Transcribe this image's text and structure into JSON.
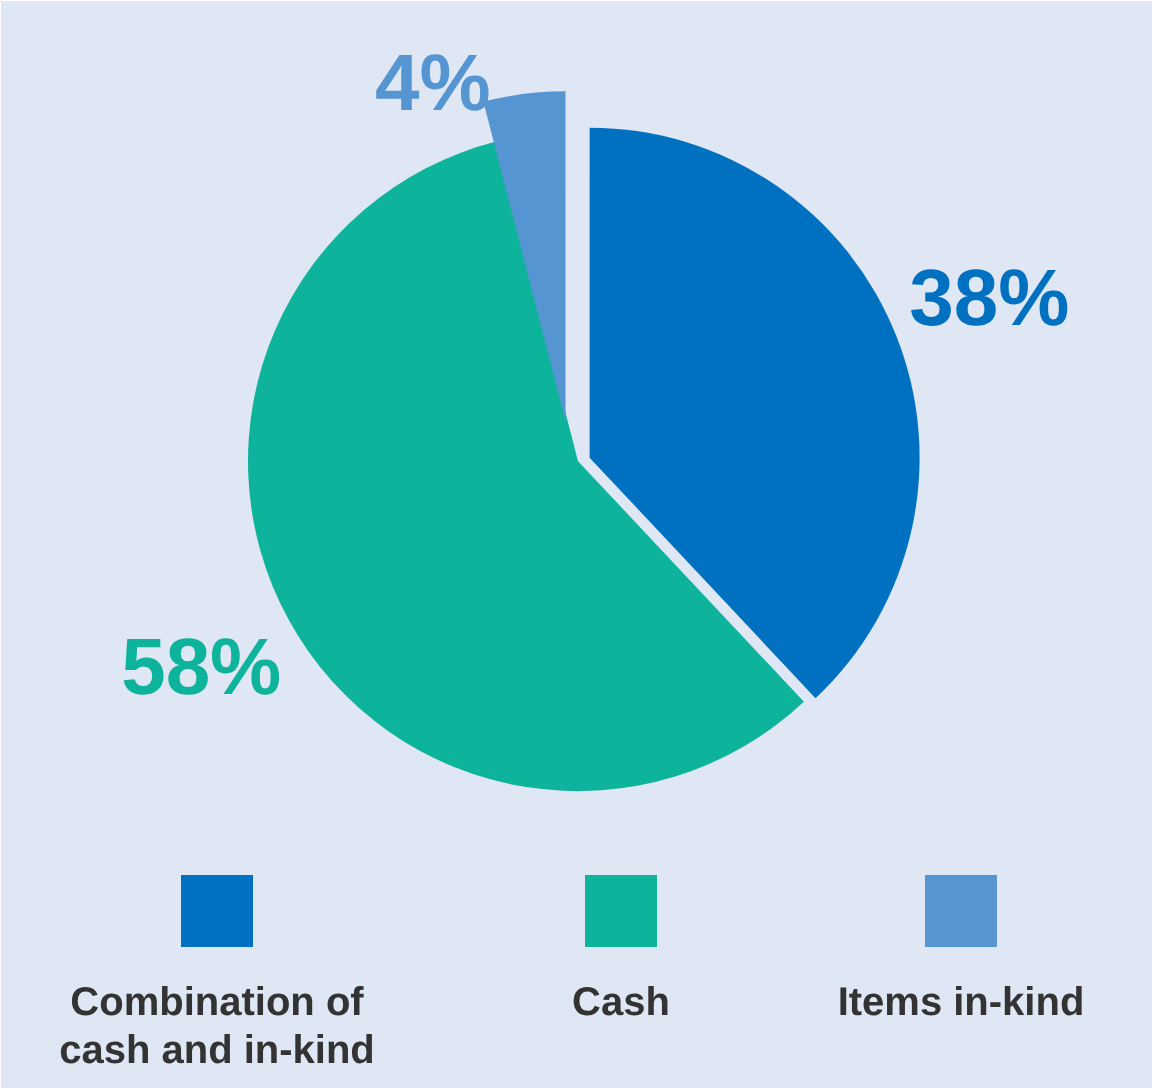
{
  "chart_data": {
    "type": "pie",
    "categories": [
      "Combination of cash and in-kind",
      "Cash",
      "Items in-kind"
    ],
    "values": [
      38,
      58,
      4
    ],
    "colors": [
      "#0070c0",
      "#0db39a",
      "#5596d2"
    ],
    "value_labels": [
      "38%",
      "58%",
      "4%"
    ],
    "legend": "bottom"
  }
}
